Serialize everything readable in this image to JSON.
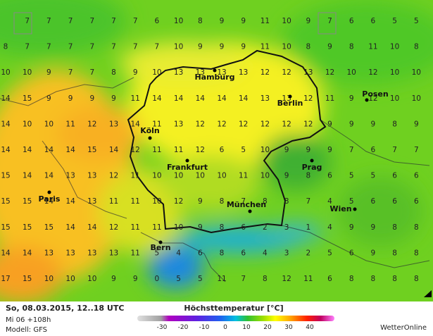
{
  "map": {
    "grid": [
      [
        null,
        7,
        7,
        7,
        7,
        7,
        7,
        6,
        10,
        8,
        9,
        9,
        11,
        10,
        9,
        7,
        6,
        6,
        5,
        5
      ],
      [
        8,
        7,
        7,
        7,
        7,
        7,
        7,
        7,
        10,
        9,
        9,
        9,
        11,
        10,
        8,
        9,
        8,
        11,
        10,
        8
      ],
      [
        10,
        10,
        9,
        7,
        7,
        8,
        9,
        10,
        13,
        13,
        13,
        13,
        12,
        12,
        13,
        12,
        10,
        12,
        10,
        10
      ],
      [
        14,
        15,
        9,
        9,
        9,
        9,
        11,
        14,
        14,
        14,
        14,
        14,
        13,
        13,
        12,
        11,
        9,
        12,
        10,
        10
      ],
      [
        14,
        10,
        10,
        11,
        12,
        13,
        14,
        11,
        13,
        12,
        12,
        12,
        12,
        12,
        12,
        9,
        9,
        9,
        8,
        9
      ],
      [
        14,
        14,
        14,
        14,
        15,
        14,
        12,
        11,
        11,
        12,
        6,
        5,
        10,
        9,
        9,
        9,
        7,
        6,
        7,
        7
      ],
      [
        15,
        14,
        14,
        13,
        13,
        12,
        11,
        10,
        10,
        10,
        10,
        11,
        10,
        9,
        8,
        6,
        5,
        5,
        6,
        6
      ],
      [
        15,
        15,
        14,
        14,
        13,
        11,
        11,
        10,
        12,
        9,
        8,
        7,
        8,
        8,
        7,
        4,
        5,
        6,
        6,
        6
      ],
      [
        15,
        15,
        15,
        14,
        14,
        12,
        11,
        11,
        10,
        9,
        8,
        6,
        2,
        3,
        1,
        4,
        9,
        9,
        8,
        8
      ],
      [
        14,
        14,
        13,
        13,
        13,
        13,
        11,
        5,
        4,
        6,
        8,
        6,
        4,
        3,
        2,
        5,
        6,
        9,
        8,
        8
      ],
      [
        17,
        15,
        10,
        10,
        10,
        9,
        9,
        0,
        5,
        5,
        11,
        7,
        8,
        12,
        11,
        6,
        8,
        8,
        8,
        8
      ]
    ],
    "cities": [
      "Hamburg",
      "Berlin",
      "Posen",
      "Köln",
      "Frankfurt",
      "Prag",
      "Paris",
      "München",
      "Wien",
      "Bern"
    ]
  },
  "footer": {
    "date": "So, 08.03.2015, 12..18 UTC",
    "run": "Mi 06 +108h",
    "model": "Modell: GFS",
    "legend_title": "Höchsttemperatur [°C]",
    "legend_ticks": [
      -30,
      -20,
      -10,
      0,
      10,
      20,
      30,
      40
    ],
    "brand": "WetterOnline"
  }
}
